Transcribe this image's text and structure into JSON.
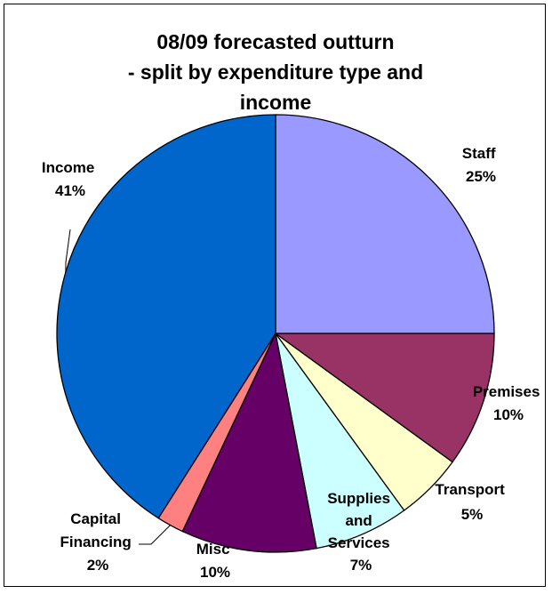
{
  "chart_data": {
    "type": "pie",
    "title_lines": [
      "08/09 forecasted outturn",
      "- split by expenditure type and",
      "income"
    ],
    "slices": [
      {
        "name": "Staff",
        "value": 25,
        "pct_label": "25%",
        "color": "#9999ff"
      },
      {
        "name": "Premises",
        "value": 10,
        "pct_label": "10%",
        "color": "#993366"
      },
      {
        "name": "Transport",
        "value": 5,
        "pct_label": "5%",
        "color": "#ffffcc"
      },
      {
        "name": "Supplies and Services",
        "value": 7,
        "pct_label": "7%",
        "color": "#ccffff"
      },
      {
        "name": "Misc",
        "value": 10,
        "pct_label": "10%",
        "color": "#660066"
      },
      {
        "name": "Capital Financing",
        "value": 2,
        "pct_label": "2%",
        "color": "#ff8080"
      },
      {
        "name": "Income",
        "value": 41,
        "pct_label": "41%",
        "color": "#0066cc"
      }
    ]
  }
}
